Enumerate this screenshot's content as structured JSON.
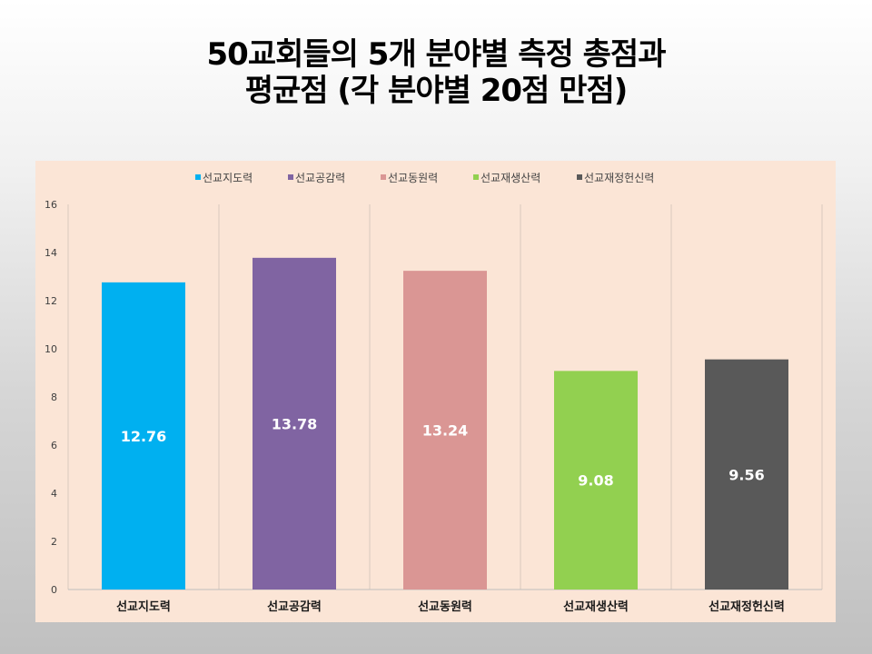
{
  "title": {
    "line1": "50교회들의 5개 분야별 측정 총점과",
    "line2": "평균점 (각 분야별 20점 만점)"
  },
  "chart_data": {
    "type": "bar",
    "categories": [
      "선교지도력",
      "선교공감력",
      "선교동원력",
      "선교재생산력",
      "선교재정헌신력"
    ],
    "values": [
      12.76,
      13.78,
      13.24,
      9.08,
      9.56
    ],
    "value_labels": [
      "12.76",
      "13.78",
      "13.24",
      "9.08",
      "9.56"
    ],
    "colors": [
      "#00b0f0",
      "#8064a2",
      "#da9694",
      "#92d050",
      "#595959"
    ],
    "legend": [
      "선교지도력",
      "선교공감력",
      "선교동원력",
      "선교재생산력",
      "선교재정헌신력"
    ],
    "legend_position": "top",
    "ylim": [
      0,
      16
    ],
    "yticks": [
      "0",
      "2",
      "4",
      "6",
      "8",
      "10",
      "12",
      "14",
      "16"
    ],
    "ytick_values": [
      0,
      2,
      4,
      6,
      8,
      10,
      12,
      14,
      16
    ],
    "grid": "vertical-category-separators",
    "xlabel": "",
    "ylabel": ""
  }
}
